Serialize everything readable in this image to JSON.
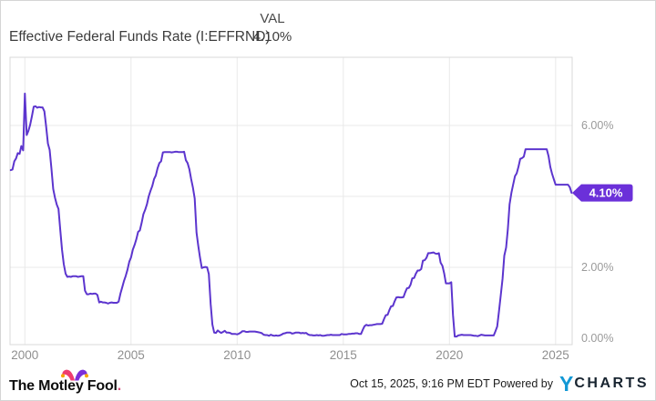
{
  "header": {
    "title": "Effective Federal Funds Rate (I:EFFRND)",
    "val_label": "VAL",
    "val_value": "4.10%"
  },
  "chart_data": {
    "type": "line",
    "title": "Effective Federal Funds Rate (I:EFFRND)",
    "unit": "percent",
    "grid": true,
    "legend": "none",
    "x_tick_labels": [
      "2000",
      "2005",
      "2010",
      "2015",
      "2020",
      "2025"
    ],
    "x_tick_years": [
      2000,
      2005,
      2010,
      2015,
      2020,
      2025
    ],
    "y_tick_labels": [
      "6.00%",
      "2.00%",
      "0.00%"
    ],
    "y_tick_values": [
      6,
      2,
      0
    ],
    "y_gridline_values": [
      6,
      4,
      2
    ],
    "xlim": [
      1999.3,
      2025.78
    ],
    "ylim": [
      -0.18,
      7.92
    ],
    "last_value": 4.1,
    "last_point_tag": "4.10%",
    "series": {
      "name": "Effective Federal Funds Rate",
      "frequency": "monthly",
      "start_year": 1999,
      "start_month": 5,
      "values": [
        4.74,
        4.76,
        4.99,
        5.07,
        5.22,
        5.2,
        5.42,
        5.3,
        6.9,
        5.73,
        5.85,
        6.02,
        6.27,
        6.53,
        6.54,
        6.5,
        6.52,
        6.51,
        6.51,
        6.4,
        5.98,
        5.49,
        5.31,
        4.8,
        4.21,
        3.97,
        3.77,
        3.65,
        3.07,
        2.49,
        2.09,
        1.82,
        1.73,
        1.74,
        1.73,
        1.75,
        1.75,
        1.75,
        1.73,
        1.74,
        1.75,
        1.75,
        1.34,
        1.24,
        1.24,
        1.26,
        1.25,
        1.26,
        1.26,
        1.22,
        1.01,
        1.03,
        1.01,
        1.01,
        1.0,
        0.98,
        1.0,
        1.01,
        1.0,
        1.0,
        1.0,
        1.03,
        1.26,
        1.43,
        1.61,
        1.76,
        1.93,
        2.16,
        2.28,
        2.5,
        2.63,
        2.79,
        3.0,
        3.04,
        3.26,
        3.5,
        3.62,
        3.78,
        4.0,
        4.16,
        4.29,
        4.49,
        4.59,
        4.79,
        4.94,
        4.99,
        5.24,
        5.25,
        5.25,
        5.25,
        5.25,
        5.24,
        5.25,
        5.26,
        5.26,
        5.25,
        5.25,
        5.25,
        5.26,
        5.02,
        4.94,
        4.76,
        4.49,
        4.24,
        3.94,
        2.98,
        2.61,
        2.28,
        1.98,
        2.0,
        2.01,
        2.0,
        1.81,
        0.97,
        0.39,
        0.16,
        0.15,
        0.22,
        0.18,
        0.15,
        0.18,
        0.21,
        0.16,
        0.16,
        0.15,
        0.12,
        0.12,
        0.12,
        0.11,
        0.13,
        0.16,
        0.2,
        0.2,
        0.18,
        0.18,
        0.19,
        0.19,
        0.19,
        0.19,
        0.18,
        0.17,
        0.16,
        0.14,
        0.1,
        0.09,
        0.09,
        0.07,
        0.1,
        0.08,
        0.07,
        0.08,
        0.07,
        0.08,
        0.1,
        0.13,
        0.14,
        0.16,
        0.16,
        0.16,
        0.13,
        0.14,
        0.16,
        0.16,
        0.16,
        0.14,
        0.15,
        0.14,
        0.15,
        0.11,
        0.09,
        0.09,
        0.08,
        0.08,
        0.09,
        0.08,
        0.09,
        0.07,
        0.07,
        0.08,
        0.09,
        0.09,
        0.1,
        0.09,
        0.09,
        0.09,
        0.09,
        0.09,
        0.12,
        0.11,
        0.11,
        0.11,
        0.12,
        0.12,
        0.13,
        0.13,
        0.14,
        0.14,
        0.12,
        0.12,
        0.24,
        0.34,
        0.38,
        0.36,
        0.37,
        0.37,
        0.38,
        0.39,
        0.4,
        0.4,
        0.4,
        0.41,
        0.54,
        0.65,
        0.66,
        0.79,
        0.9,
        0.91,
        1.04,
        1.15,
        1.16,
        1.15,
        1.15,
        1.16,
        1.3,
        1.41,
        1.42,
        1.51,
        1.69,
        1.7,
        1.82,
        1.91,
        1.91,
        1.95,
        2.19,
        2.2,
        2.27,
        2.4,
        2.4,
        2.41,
        2.42,
        2.39,
        2.38,
        2.4,
        2.13,
        2.04,
        1.83,
        1.55,
        1.55,
        1.55,
        1.58,
        0.65,
        0.05,
        0.05,
        0.08,
        0.09,
        0.1,
        0.09,
        0.09,
        0.09,
        0.09,
        0.09,
        0.08,
        0.07,
        0.07,
        0.06,
        0.08,
        0.1,
        0.09,
        0.08,
        0.08,
        0.08,
        0.08,
        0.08,
        0.08,
        0.2,
        0.33,
        0.77,
        1.21,
        1.68,
        2.33,
        2.56,
        3.08,
        3.78,
        4.1,
        4.33,
        4.57,
        4.65,
        4.83,
        5.06,
        5.08,
        5.12,
        5.33,
        5.33,
        5.33,
        5.33,
        5.33,
        5.33,
        5.33,
        5.33,
        5.33,
        5.33,
        5.33,
        5.33,
        5.33,
        5.13,
        4.83,
        4.64,
        4.48,
        4.33,
        4.33,
        4.33,
        4.33,
        4.33,
        4.33,
        4.33,
        4.33,
        4.26,
        4.1
      ]
    }
  },
  "footer": {
    "left_logo_text": "The Motley Fool",
    "left_logo_period": ".",
    "timestamp": "Oct 15, 2025, 9:16 PM EDT",
    "powered_by": "Powered by",
    "brand_y": "Y",
    "brand_rest": "CHARTS"
  },
  "colors": {
    "line": "#5c35ce",
    "tag_bg": "#6b30d9",
    "tag_text": "#ffffff",
    "grid": "#e9e9e9",
    "plot_border": "#d9d9d9",
    "x_label": "#8f8f8f",
    "y_label": "#9a9a9a",
    "widget_border": "#d5d5d5",
    "mf_pink": "#ee3d6f",
    "mf_purple": "#7b2fd9",
    "mf_gold": "#f6a500",
    "ycharts_blue": "#1298d5",
    "ycharts_dark": "#182430"
  }
}
